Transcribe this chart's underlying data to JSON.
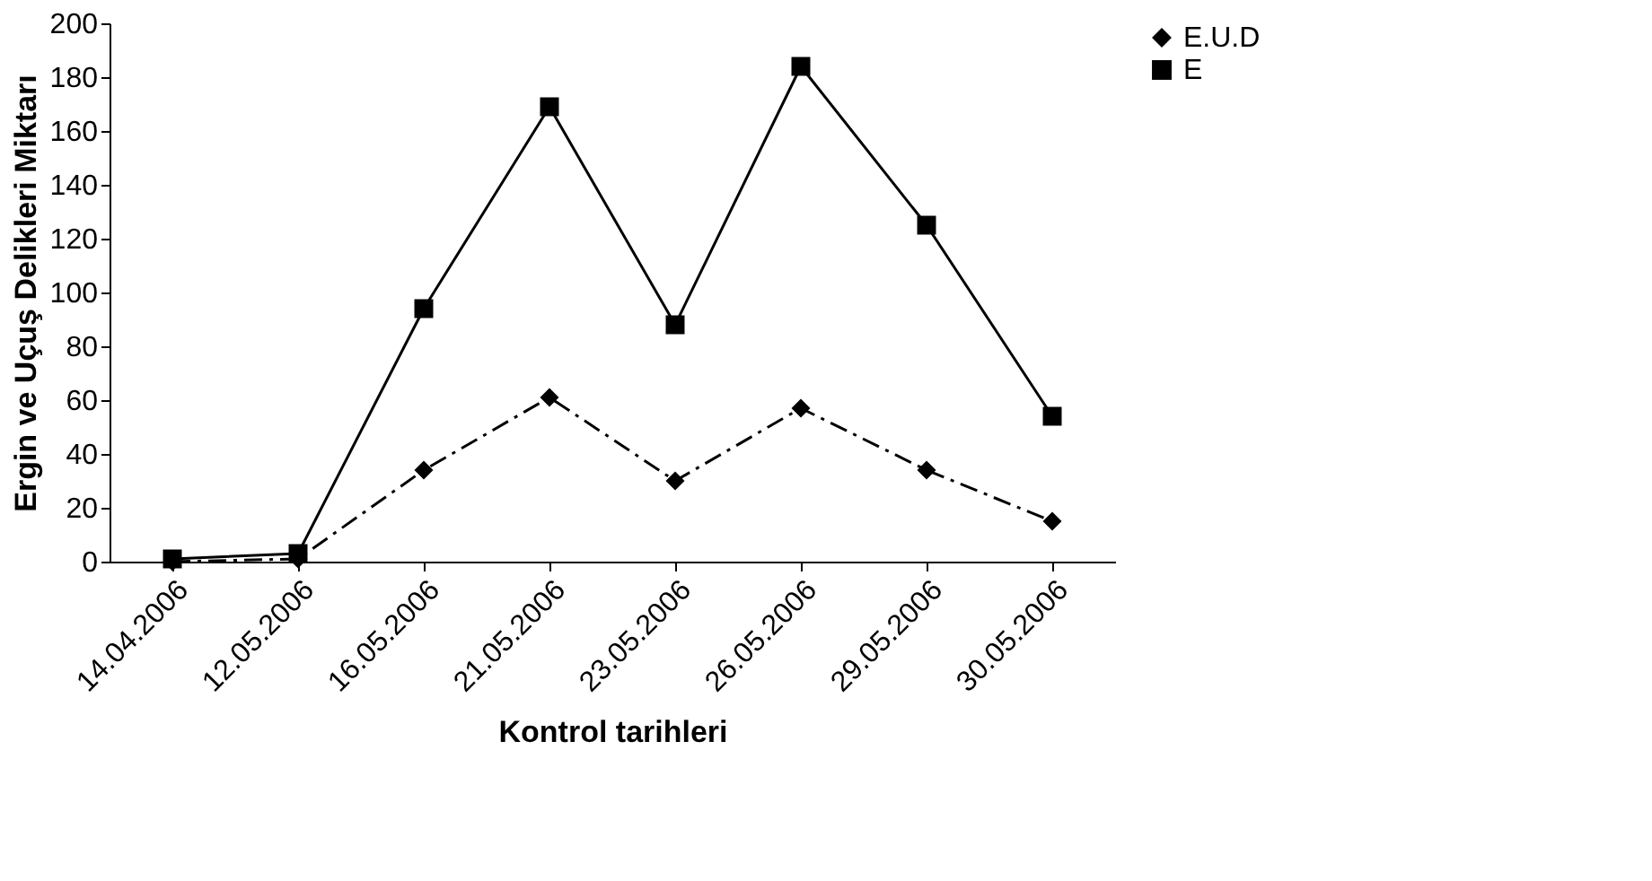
{
  "chart_data": {
    "type": "line",
    "categories": [
      "14.04.2006",
      "12.05.2006",
      "16.05.2006",
      "21.05.2006",
      "23.05.2006",
      "26.05.2006",
      "29.05.2006",
      "30.05.2006"
    ],
    "series": [
      {
        "name": "E.U.D",
        "color": "#000000",
        "marker": "diamond",
        "line_style": "dashed",
        "values": [
          0,
          1,
          34,
          61,
          30,
          57,
          34,
          15
        ]
      },
      {
        "name": "E",
        "color": "#000000",
        "marker": "square",
        "line_style": "solid",
        "values": [
          1,
          3,
          94,
          169,
          88,
          184,
          125,
          54
        ]
      }
    ],
    "xlabel": "Kontrol tarihleri",
    "ylabel": "Ergin ve Uçuş Delikleri Miktarı",
    "ylim": [
      0,
      200
    ],
    "yticks": [
      0,
      20,
      40,
      60,
      80,
      100,
      120,
      140,
      160,
      180,
      200
    ],
    "grid": false,
    "legend": "right"
  }
}
